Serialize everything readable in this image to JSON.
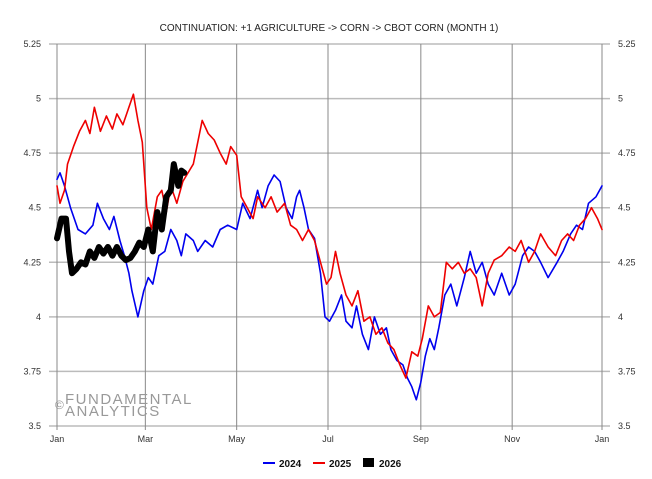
{
  "chart_data": {
    "type": "line",
    "title": "CONTINUATION: +1 AGRICULTURE -> CORN -> CBOT CORN (MONTH 1)",
    "xlabel": "",
    "ylabel": "",
    "ylim": [
      3.5,
      5.25
    ],
    "y_ticks": [
      "3.5",
      "3.75",
      "4",
      "4.25",
      "4.5",
      "4.75",
      "5",
      "5.25"
    ],
    "x_ticks": [
      "Jan",
      "Mar",
      "May",
      "Jul",
      "Sep",
      "Nov",
      "Jan"
    ],
    "grid": true,
    "legend_position": "bottom",
    "watermark": [
      "FUNDAMENTAL",
      "ANALYTICS"
    ],
    "watermark_symbol": "©",
    "series": [
      {
        "name": "2024",
        "color": "#0000ee",
        "values": [
          [
            "01-01",
            4.63
          ],
          [
            "01-03",
            4.66
          ],
          [
            "01-06",
            4.6
          ],
          [
            "01-08",
            4.55
          ],
          [
            "01-10",
            4.5
          ],
          [
            "01-15",
            4.4
          ],
          [
            "01-20",
            4.38
          ],
          [
            "01-25",
            4.42
          ],
          [
            "01-28",
            4.52
          ],
          [
            "02-01",
            4.45
          ],
          [
            "02-05",
            4.4
          ],
          [
            "02-08",
            4.46
          ],
          [
            "02-12",
            4.35
          ],
          [
            "02-15",
            4.28
          ],
          [
            "02-18",
            4.2
          ],
          [
            "02-20",
            4.12
          ],
          [
            "02-24",
            4.0
          ],
          [
            "02-28",
            4.12
          ],
          [
            "03-03",
            4.18
          ],
          [
            "03-06",
            4.15
          ],
          [
            "03-10",
            4.28
          ],
          [
            "03-14",
            4.3
          ],
          [
            "03-18",
            4.4
          ],
          [
            "03-22",
            4.35
          ],
          [
            "03-25",
            4.28
          ],
          [
            "03-28",
            4.38
          ],
          [
            "04-02",
            4.35
          ],
          [
            "04-05",
            4.3
          ],
          [
            "04-10",
            4.35
          ],
          [
            "04-15",
            4.32
          ],
          [
            "04-20",
            4.4
          ],
          [
            "04-25",
            4.42
          ],
          [
            "05-01",
            4.4
          ],
          [
            "05-05",
            4.52
          ],
          [
            "05-10",
            4.45
          ],
          [
            "05-15",
            4.58
          ],
          [
            "05-18",
            4.5
          ],
          [
            "05-22",
            4.6
          ],
          [
            "05-26",
            4.65
          ],
          [
            "05-30",
            4.62
          ],
          [
            "06-03",
            4.5
          ],
          [
            "06-07",
            4.45
          ],
          [
            "06-10",
            4.55
          ],
          [
            "06-12",
            4.58
          ],
          [
            "06-15",
            4.5
          ],
          [
            "06-18",
            4.4
          ],
          [
            "06-22",
            4.36
          ],
          [
            "06-26",
            4.2
          ],
          [
            "06-29",
            4.0
          ],
          [
            "07-02",
            3.98
          ],
          [
            "07-06",
            4.03
          ],
          [
            "07-10",
            4.1
          ],
          [
            "07-13",
            3.98
          ],
          [
            "07-17",
            3.95
          ],
          [
            "07-20",
            4.05
          ],
          [
            "07-24",
            3.92
          ],
          [
            "07-28",
            3.85
          ],
          [
            "08-01",
            4.0
          ],
          [
            "08-05",
            3.92
          ],
          [
            "08-09",
            3.95
          ],
          [
            "08-12",
            3.85
          ],
          [
            "08-16",
            3.8
          ],
          [
            "08-20",
            3.78
          ],
          [
            "08-23",
            3.72
          ],
          [
            "08-26",
            3.68
          ],
          [
            "08-29",
            3.62
          ],
          [
            "09-01",
            3.7
          ],
          [
            "09-04",
            3.82
          ],
          [
            "09-07",
            3.9
          ],
          [
            "09-10",
            3.85
          ],
          [
            "09-13",
            3.95
          ],
          [
            "09-17",
            4.1
          ],
          [
            "09-21",
            4.15
          ],
          [
            "09-25",
            4.05
          ],
          [
            "09-30",
            4.18
          ],
          [
            "10-04",
            4.3
          ],
          [
            "10-08",
            4.2
          ],
          [
            "10-12",
            4.25
          ],
          [
            "10-16",
            4.15
          ],
          [
            "10-20",
            4.1
          ],
          [
            "10-25",
            4.2
          ],
          [
            "10-30",
            4.1
          ],
          [
            "11-03",
            4.15
          ],
          [
            "11-08",
            4.28
          ],
          [
            "11-12",
            4.32
          ],
          [
            "11-16",
            4.3
          ],
          [
            "11-20",
            4.25
          ],
          [
            "11-25",
            4.18
          ],
          [
            "12-01",
            4.25
          ],
          [
            "12-05",
            4.3
          ],
          [
            "12-10",
            4.38
          ],
          [
            "12-14",
            4.42
          ],
          [
            "12-18",
            4.4
          ],
          [
            "12-22",
            4.52
          ],
          [
            "12-27",
            4.55
          ],
          [
            "12-31",
            4.6
          ]
        ]
      },
      {
        "name": "2025",
        "color": "#ee0000",
        "values": [
          [
            "01-01",
            4.6
          ],
          [
            "01-03",
            4.52
          ],
          [
            "01-06",
            4.58
          ],
          [
            "01-08",
            4.7
          ],
          [
            "01-12",
            4.78
          ],
          [
            "01-16",
            4.85
          ],
          [
            "01-20",
            4.9
          ],
          [
            "01-23",
            4.84
          ],
          [
            "01-26",
            4.96
          ],
          [
            "01-30",
            4.85
          ],
          [
            "02-03",
            4.92
          ],
          [
            "02-07",
            4.86
          ],
          [
            "02-10",
            4.93
          ],
          [
            "02-14",
            4.88
          ],
          [
            "02-18",
            4.96
          ],
          [
            "02-21",
            5.02
          ],
          [
            "02-24",
            4.9
          ],
          [
            "02-27",
            4.8
          ],
          [
            "03-02",
            4.5
          ],
          [
            "03-05",
            4.4
          ],
          [
            "03-09",
            4.55
          ],
          [
            "03-12",
            4.58
          ],
          [
            "03-15",
            4.48
          ],
          [
            "03-18",
            4.6
          ],
          [
            "03-22",
            4.52
          ],
          [
            "03-26",
            4.62
          ],
          [
            "04-02",
            4.7
          ],
          [
            "04-08",
            4.9
          ],
          [
            "04-12",
            4.84
          ],
          [
            "04-16",
            4.81
          ],
          [
            "04-20",
            4.75
          ],
          [
            "04-24",
            4.7
          ],
          [
            "04-27",
            4.78
          ],
          [
            "05-01",
            4.74
          ],
          [
            "05-04",
            4.55
          ],
          [
            "05-08",
            4.5
          ],
          [
            "05-12",
            4.45
          ],
          [
            "05-15",
            4.55
          ],
          [
            "05-20",
            4.5
          ],
          [
            "05-24",
            4.55
          ],
          [
            "05-28",
            4.48
          ],
          [
            "06-02",
            4.52
          ],
          [
            "06-06",
            4.42
          ],
          [
            "06-10",
            4.4
          ],
          [
            "06-14",
            4.35
          ],
          [
            "06-18",
            4.4
          ],
          [
            "06-22",
            4.35
          ],
          [
            "06-26",
            4.25
          ],
          [
            "06-30",
            4.15
          ],
          [
            "07-03",
            4.18
          ],
          [
            "07-06",
            4.3
          ],
          [
            "07-09",
            4.2
          ],
          [
            "07-13",
            4.1
          ],
          [
            "07-17",
            4.05
          ],
          [
            "07-21",
            4.12
          ],
          [
            "07-25",
            3.98
          ],
          [
            "07-29",
            4.0
          ],
          [
            "08-02",
            3.92
          ],
          [
            "08-06",
            3.95
          ],
          [
            "08-10",
            3.88
          ],
          [
            "08-14",
            3.85
          ],
          [
            "08-18",
            3.78
          ],
          [
            "08-22",
            3.72
          ],
          [
            "08-26",
            3.84
          ],
          [
            "08-30",
            3.82
          ],
          [
            "09-02",
            3.9
          ],
          [
            "09-06",
            4.05
          ],
          [
            "09-10",
            4.0
          ],
          [
            "09-14",
            4.02
          ],
          [
            "09-18",
            4.25
          ],
          [
            "09-22",
            4.22
          ],
          [
            "09-26",
            4.25
          ],
          [
            "09-30",
            4.2
          ],
          [
            "10-04",
            4.22
          ],
          [
            "10-08",
            4.18
          ],
          [
            "10-12",
            4.05
          ],
          [
            "10-16",
            4.2
          ],
          [
            "10-20",
            4.26
          ],
          [
            "10-25",
            4.28
          ],
          [
            "10-30",
            4.32
          ],
          [
            "11-03",
            4.3
          ],
          [
            "11-07",
            4.35
          ],
          [
            "11-12",
            4.25
          ],
          [
            "11-16",
            4.3
          ],
          [
            "11-20",
            4.38
          ],
          [
            "11-25",
            4.32
          ],
          [
            "11-30",
            4.28
          ],
          [
            "12-04",
            4.35
          ],
          [
            "12-08",
            4.38
          ],
          [
            "12-12",
            4.35
          ],
          [
            "12-16",
            4.42
          ],
          [
            "12-20",
            4.45
          ],
          [
            "12-24",
            4.5
          ],
          [
            "12-28",
            4.45
          ],
          [
            "12-31",
            4.4
          ]
        ]
      },
      {
        "name": "2026",
        "color": "#000000",
        "values": [
          [
            "01-01",
            4.36
          ],
          [
            "01-04",
            4.45
          ],
          [
            "01-07",
            4.45
          ],
          [
            "01-09",
            4.3
          ],
          [
            "01-11",
            4.2
          ],
          [
            "01-14",
            4.22
          ],
          [
            "01-17",
            4.25
          ],
          [
            "01-20",
            4.24
          ],
          [
            "01-23",
            4.3
          ],
          [
            "01-26",
            4.27
          ],
          [
            "01-29",
            4.32
          ],
          [
            "02-01",
            4.29
          ],
          [
            "02-04",
            4.32
          ],
          [
            "02-07",
            4.28
          ],
          [
            "02-10",
            4.32
          ],
          [
            "02-13",
            4.28
          ],
          [
            "02-16",
            4.26
          ],
          [
            "02-19",
            4.27
          ],
          [
            "02-22",
            4.3
          ],
          [
            "02-25",
            4.34
          ],
          [
            "02-28",
            4.32
          ],
          [
            "03-03",
            4.4
          ],
          [
            "03-06",
            4.3
          ],
          [
            "03-09",
            4.48
          ],
          [
            "03-12",
            4.4
          ],
          [
            "03-15",
            4.55
          ],
          [
            "03-18",
            4.58
          ],
          [
            "03-20",
            4.7
          ],
          [
            "03-23",
            4.6
          ],
          [
            "03-25",
            4.67
          ],
          [
            "03-27",
            4.66
          ]
        ]
      }
    ]
  }
}
